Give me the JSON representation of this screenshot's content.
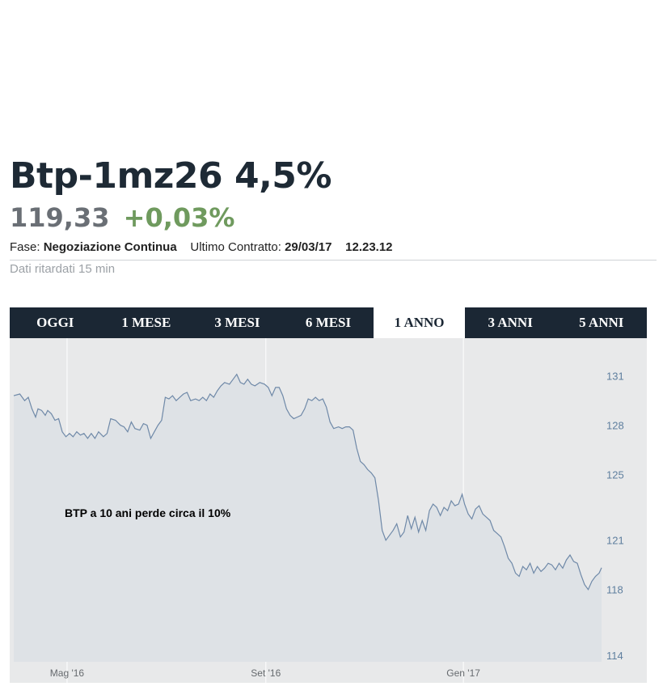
{
  "security": {
    "title": "Btp-1mz26 4,5%",
    "price": "119,33",
    "change": "+0,03%"
  },
  "info": {
    "phase_label": "Fase:",
    "phase_value": "Negoziazione Continua",
    "last_trade_label": "Ultimo Contratto:",
    "last_trade_date": "29/03/17",
    "last_trade_time": "12.23.12",
    "delay_note": "Dati ritardati 15 min"
  },
  "tabs": [
    {
      "label": "OGGI",
      "active": false
    },
    {
      "label": "1 MESE",
      "active": false
    },
    {
      "label": "3 MESI",
      "active": false
    },
    {
      "label": "6 MESI",
      "active": false
    },
    {
      "label": "1 ANNO",
      "active": true
    },
    {
      "label": "3 ANNI",
      "active": false
    },
    {
      "label": "5 ANNI",
      "active": false
    }
  ],
  "colors": {
    "header_bg": "#1b2734",
    "chart_bg": "#e8e9ea",
    "area_fill": "#dee2e6",
    "line": "#6f89a8",
    "positive": "#6f9a5e",
    "axis_text": "#5f7f9f"
  },
  "chart_data": {
    "type": "area",
    "annotation": "BTP a 10 ani perde circa il 10%",
    "yticks": [
      131,
      128,
      125,
      121,
      118,
      114
    ],
    "ylim": [
      113.6,
      133.3
    ],
    "xticks": [
      {
        "label": "Mag '16",
        "index": 44
      },
      {
        "label": "Set '16",
        "index": 208
      },
      {
        "label": "Gen '17",
        "index": 371
      }
    ],
    "xlim": [
      0,
      485
    ],
    "grid": true,
    "series": [
      {
        "points": [
          [
            0,
            129.8
          ],
          [
            5,
            129.9
          ],
          [
            9,
            129.5
          ],
          [
            12,
            129.7
          ],
          [
            15,
            129.0
          ],
          [
            18,
            128.5
          ],
          [
            20,
            129.0
          ],
          [
            23,
            128.9
          ],
          [
            26,
            128.6
          ],
          [
            28,
            128.9
          ],
          [
            31,
            128.7
          ],
          [
            34,
            128.3
          ],
          [
            37,
            128.4
          ],
          [
            40,
            127.6
          ],
          [
            43,
            127.3
          ],
          [
            46,
            127.5
          ],
          [
            49,
            127.3
          ],
          [
            52,
            127.6
          ],
          [
            55,
            127.4
          ],
          [
            58,
            127.5
          ],
          [
            61,
            127.2
          ],
          [
            64,
            127.5
          ],
          [
            67,
            127.2
          ],
          [
            70,
            127.6
          ],
          [
            74,
            127.3
          ],
          [
            77,
            127.5
          ],
          [
            80,
            128.4
          ],
          [
            84,
            128.3
          ],
          [
            88,
            128.0
          ],
          [
            91,
            127.9
          ],
          [
            94,
            127.6
          ],
          [
            97,
            128.2
          ],
          [
            100,
            127.8
          ],
          [
            104,
            127.7
          ],
          [
            107,
            128.1
          ],
          [
            110,
            128.0
          ],
          [
            113,
            127.2
          ],
          [
            116,
            127.6
          ],
          [
            119,
            128.0
          ],
          [
            122,
            128.3
          ],
          [
            125,
            129.7
          ],
          [
            128,
            129.6
          ],
          [
            131,
            129.8
          ],
          [
            134,
            129.5
          ],
          [
            137,
            129.7
          ],
          [
            140,
            129.9
          ],
          [
            143,
            130.0
          ],
          [
            146,
            129.5
          ],
          [
            150,
            129.6
          ],
          [
            153,
            129.5
          ],
          [
            156,
            129.7
          ],
          [
            159,
            129.5
          ],
          [
            162,
            129.9
          ],
          [
            165,
            129.7
          ],
          [
            168,
            130.1
          ],
          [
            171,
            130.4
          ],
          [
            174,
            130.6
          ],
          [
            178,
            130.5
          ],
          [
            181,
            130.8
          ],
          [
            184,
            131.1
          ],
          [
            187,
            130.6
          ],
          [
            190,
            130.5
          ],
          [
            193,
            130.8
          ],
          [
            196,
            130.5
          ],
          [
            199,
            130.4
          ],
          [
            203,
            130.6
          ],
          [
            207,
            130.5
          ],
          [
            210,
            130.3
          ],
          [
            213,
            129.8
          ],
          [
            216,
            130.3
          ],
          [
            219,
            130.3
          ],
          [
            222,
            129.8
          ],
          [
            225,
            129.0
          ],
          [
            228,
            128.6
          ],
          [
            231,
            128.4
          ],
          [
            234,
            128.5
          ],
          [
            237,
            128.6
          ],
          [
            240,
            129.0
          ],
          [
            243,
            129.6
          ],
          [
            246,
            129.5
          ],
          [
            249,
            129.7
          ],
          [
            252,
            129.5
          ],
          [
            255,
            129.6
          ],
          [
            258,
            129.1
          ],
          [
            261,
            128.2
          ],
          [
            264,
            127.8
          ],
          [
            268,
            127.9
          ],
          [
            271,
            127.8
          ],
          [
            274,
            127.9
          ],
          [
            277,
            127.9
          ],
          [
            280,
            127.7
          ],
          [
            283,
            126.6
          ],
          [
            286,
            125.8
          ],
          [
            289,
            125.6
          ],
          [
            292,
            125.3
          ],
          [
            295,
            125.1
          ],
          [
            298,
            124.8
          ],
          [
            301,
            123.4
          ],
          [
            304,
            121.6
          ],
          [
            307,
            121.0
          ],
          [
            310,
            121.3
          ],
          [
            313,
            121.6
          ],
          [
            316,
            122.0
          ],
          [
            319,
            121.2
          ],
          [
            322,
            121.5
          ],
          [
            325,
            122.5
          ],
          [
            328,
            121.7
          ],
          [
            331,
            122.4
          ],
          [
            334,
            121.5
          ],
          [
            337,
            122.2
          ],
          [
            340,
            121.6
          ],
          [
            343,
            122.8
          ],
          [
            346,
            123.2
          ],
          [
            349,
            123.0
          ],
          [
            352,
            122.5
          ],
          [
            355,
            123.0
          ],
          [
            358,
            122.8
          ],
          [
            361,
            123.4
          ],
          [
            364,
            123.1
          ],
          [
            367,
            123.2
          ],
          [
            370,
            123.8
          ],
          [
            372,
            123.2
          ],
          [
            375,
            122.6
          ],
          [
            378,
            122.3
          ],
          [
            381,
            122.9
          ],
          [
            384,
            123.1
          ],
          [
            387,
            122.6
          ],
          [
            390,
            122.4
          ],
          [
            393,
            122.2
          ],
          [
            396,
            121.6
          ],
          [
            399,
            121.4
          ],
          [
            402,
            121.2
          ],
          [
            405,
            120.6
          ],
          [
            408,
            119.9
          ],
          [
            411,
            119.6
          ],
          [
            414,
            119.0
          ],
          [
            417,
            118.8
          ],
          [
            420,
            119.4
          ],
          [
            423,
            119.2
          ],
          [
            426,
            119.6
          ],
          [
            429,
            119.0
          ],
          [
            432,
            119.4
          ],
          [
            435,
            119.1
          ],
          [
            438,
            119.3
          ],
          [
            441,
            119.6
          ],
          [
            444,
            119.5
          ],
          [
            447,
            119.2
          ],
          [
            450,
            119.6
          ],
          [
            453,
            119.3
          ],
          [
            456,
            119.8
          ],
          [
            459,
            120.1
          ],
          [
            462,
            119.7
          ],
          [
            465,
            119.6
          ],
          [
            468,
            118.9
          ],
          [
            471,
            118.3
          ],
          [
            474,
            118.0
          ],
          [
            477,
            118.5
          ],
          [
            480,
            118.8
          ],
          [
            483,
            119.0
          ],
          [
            485,
            119.33
          ]
        ]
      }
    ]
  }
}
